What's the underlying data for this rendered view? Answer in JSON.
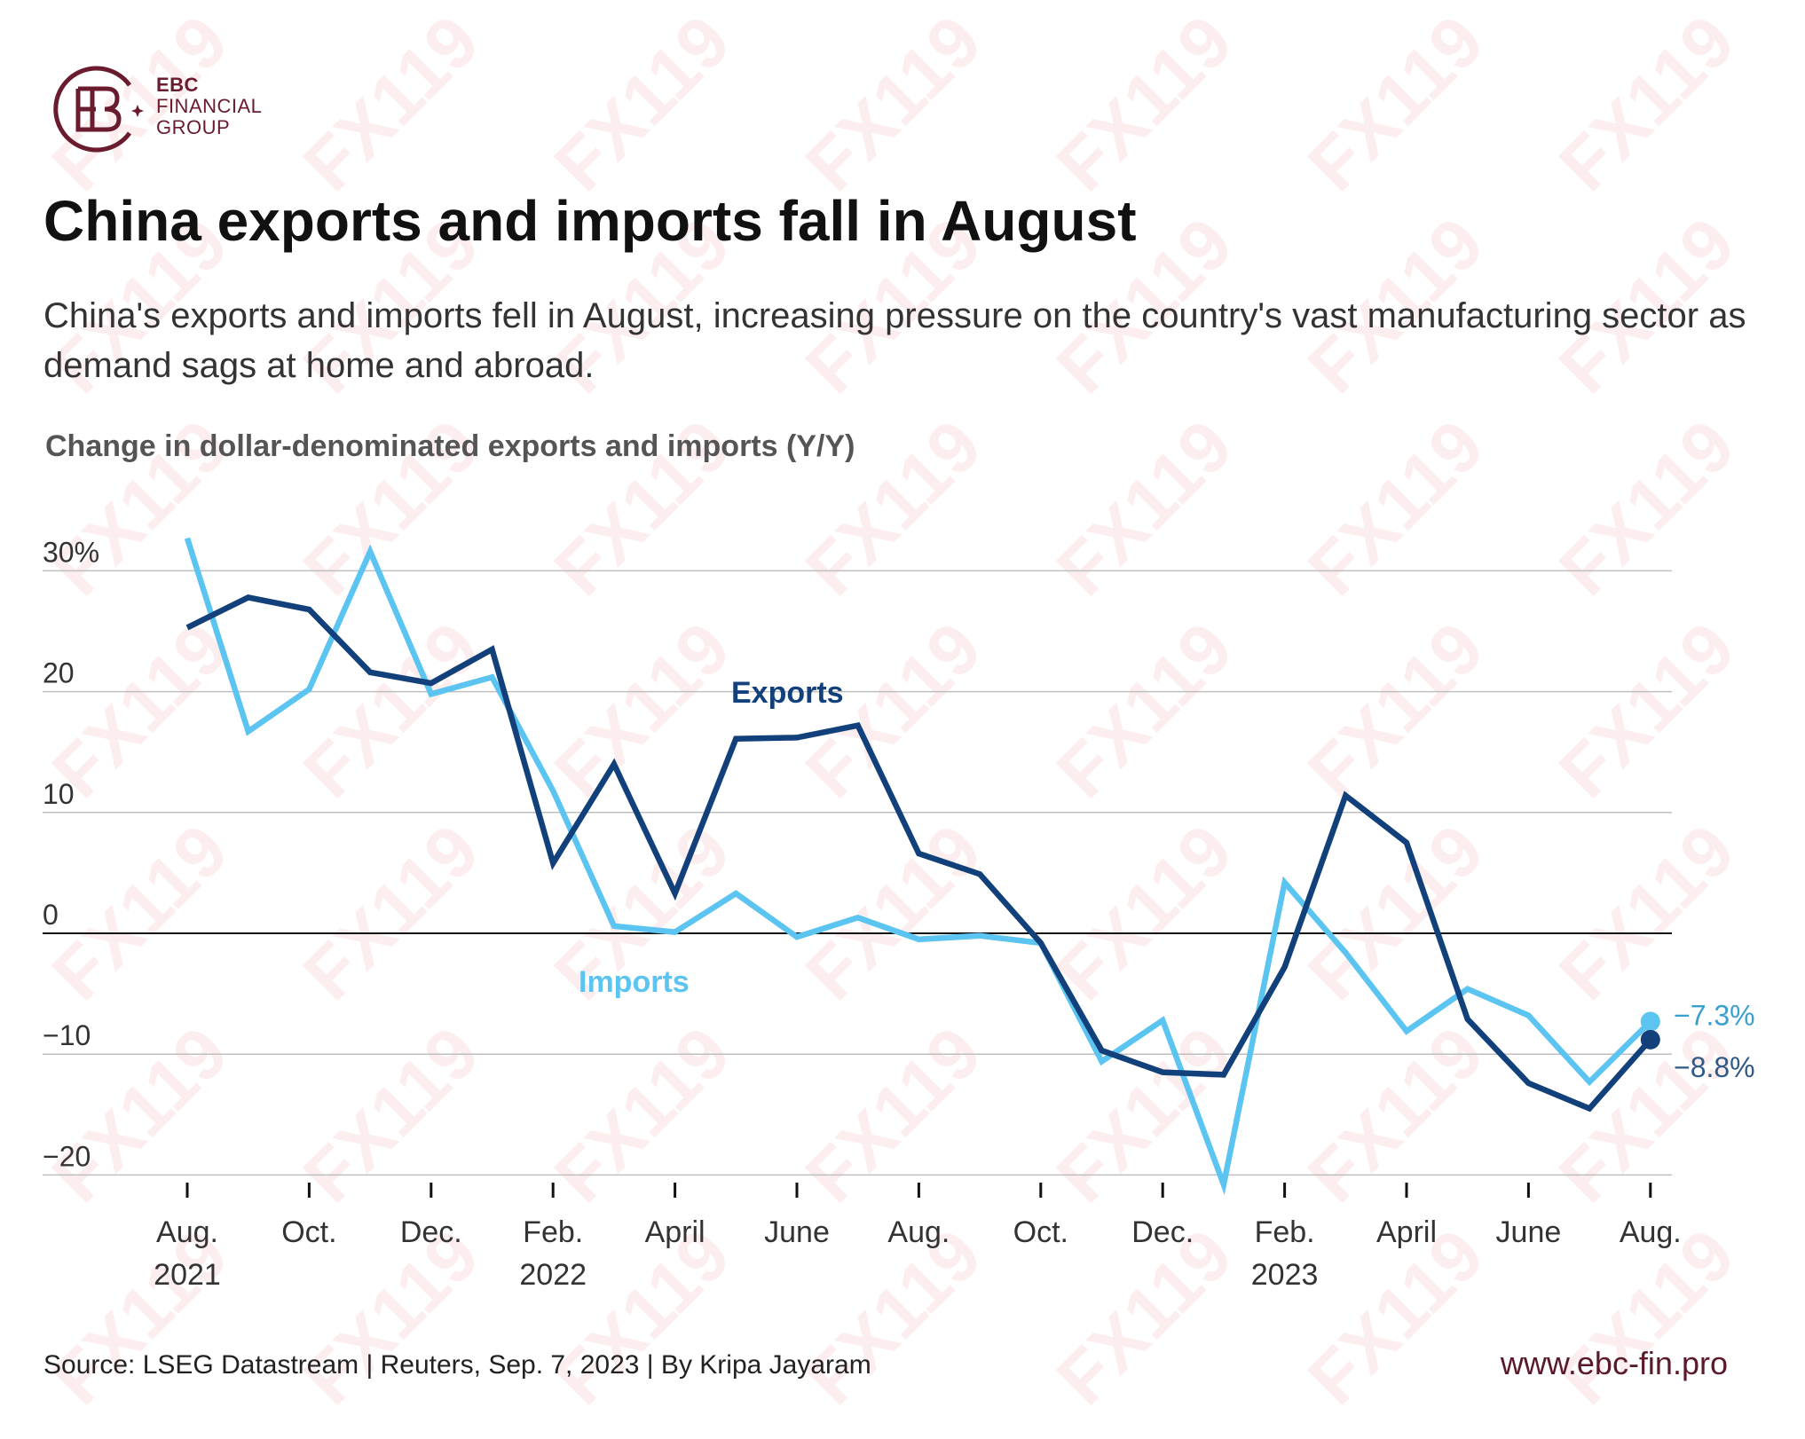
{
  "brand": {
    "line1": "EBC",
    "line2": "FINANCIAL",
    "line3": "GROUP",
    "logo_icon": "ebc-logo-icon",
    "color": "#6a1b2e"
  },
  "title": "China exports and imports fall in August",
  "subtitle": "China's exports and imports fell in August, increasing pressure on the country's vast manufacturing sector as demand sags at home and abroad.",
  "source": "Source: LSEG Datastream | Reuters, Sep. 7, 2023 | By Kripa Jayaram",
  "website": "www.ebc-fin.pro",
  "watermark": "FX119",
  "chart_data": {
    "type": "line",
    "title": "Change in dollar-denominated exports and imports (Y/Y)",
    "ylim": [
      -20,
      30
    ],
    "yticks": [
      {
        "value": 30,
        "label": "30%"
      },
      {
        "value": 20,
        "label": "20"
      },
      {
        "value": 10,
        "label": "10"
      },
      {
        "value": 0,
        "label": "0"
      },
      {
        "value": -10,
        "label": "−10"
      },
      {
        "value": -20,
        "label": "−20"
      }
    ],
    "xticks": [
      {
        "index": 0,
        "label": "Aug.",
        "sublabel": "2021"
      },
      {
        "index": 2,
        "label": "Oct.",
        "sublabel": ""
      },
      {
        "index": 4,
        "label": "Dec.",
        "sublabel": ""
      },
      {
        "index": 6,
        "label": "Feb.",
        "sublabel": "2022"
      },
      {
        "index": 8,
        "label": "April",
        "sublabel": ""
      },
      {
        "index": 10,
        "label": "June",
        "sublabel": ""
      },
      {
        "index": 12,
        "label": "Aug.",
        "sublabel": ""
      },
      {
        "index": 14,
        "label": "Oct.",
        "sublabel": ""
      },
      {
        "index": 16,
        "label": "Dec.",
        "sublabel": ""
      },
      {
        "index": 18,
        "label": "Feb.",
        "sublabel": "2023"
      },
      {
        "index": 20,
        "label": "April",
        "sublabel": ""
      },
      {
        "index": 22,
        "label": "June",
        "sublabel": ""
      },
      {
        "index": 24,
        "label": "Aug.",
        "sublabel": ""
      }
    ],
    "categories": [
      "Aug 2021",
      "Sep 2021",
      "Oct 2021",
      "Nov 2021",
      "Dec 2021",
      "Jan 2022",
      "Feb 2022",
      "Mar 2022",
      "Apr 2022",
      "May 2022",
      "Jun 2022",
      "Jul 2022",
      "Aug 2022",
      "Sep 2022",
      "Oct 2022",
      "Nov 2022",
      "Dec 2022",
      "Jan 2023",
      "Feb 2023",
      "Mar 2023",
      "Apr 2023",
      "May 2023",
      "Jun 2023",
      "Jul 2023",
      "Aug 2023"
    ],
    "series": [
      {
        "name": "Exports",
        "label": "Exports",
        "color": "#12407a",
        "end_label": "−8.8%",
        "values": [
          25.3,
          27.8,
          26.8,
          21.6,
          20.7,
          23.5,
          5.8,
          14.0,
          3.3,
          16.1,
          16.2,
          17.2,
          6.6,
          4.9,
          -0.8,
          -9.7,
          -11.5,
          -11.7,
          -2.8,
          11.4,
          7.5,
          -7.1,
          -12.4,
          -14.5,
          -8.8
        ]
      },
      {
        "name": "Imports",
        "label": "Imports",
        "color": "#5bc4f1",
        "end_label": "−7.3%",
        "values": [
          32.7,
          16.7,
          20.2,
          31.6,
          19.8,
          21.2,
          11.8,
          0.6,
          0.1,
          3.3,
          -0.3,
          1.3,
          -0.5,
          -0.2,
          -0.8,
          -10.6,
          -7.2,
          -20.8,
          4.2,
          -1.6,
          -8.1,
          -4.6,
          -6.8,
          -12.3,
          -7.3
        ]
      }
    ]
  }
}
